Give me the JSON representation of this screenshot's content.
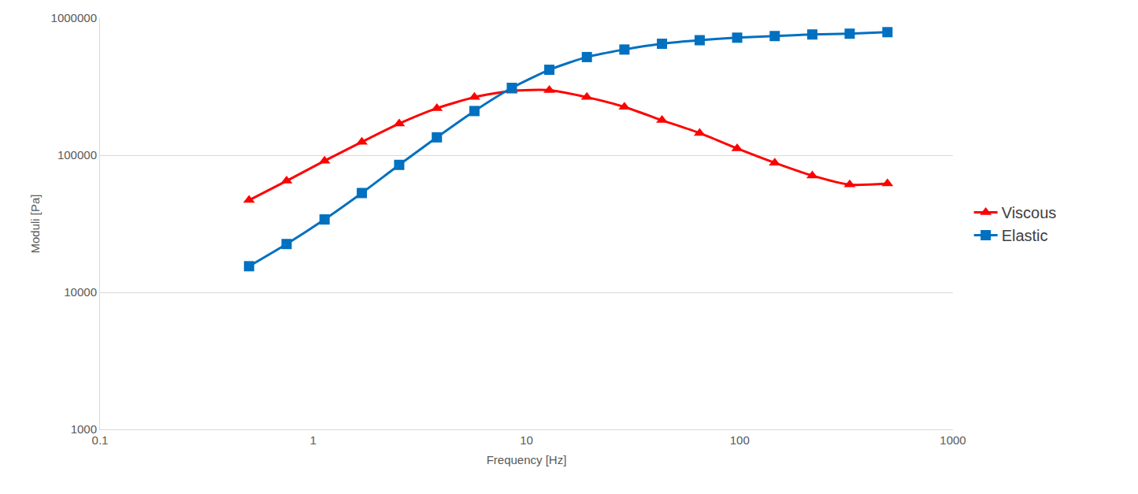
{
  "chart_data": {
    "type": "line",
    "x_label": "Frequency [Hz]",
    "y_label": "Moduli [Pa]",
    "x": [
      0.5,
      0.75,
      1.13,
      1.69,
      2.53,
      3.8,
      5.7,
      8.54,
      12.8,
      19.2,
      28.8,
      43.2,
      64.9,
      97.3,
      146,
      219,
      328,
      493
    ],
    "series": [
      {
        "name": "Viscous",
        "color": "#ff0000",
        "marker": "triangle-up",
        "values": [
          47000,
          65000,
          91000,
          125000,
          170000,
          220000,
          265000,
          295000,
          298000,
          265000,
          225000,
          180000,
          145000,
          112000,
          88000,
          71000,
          61000,
          62000
        ]
      },
      {
        "name": "Elastic",
        "color": "#0070c0",
        "marker": "square",
        "values": [
          15500,
          22500,
          34000,
          53000,
          85000,
          135000,
          210000,
          310000,
          420000,
          520000,
          590000,
          650000,
          690000,
          720000,
          740000,
          760000,
          770000,
          790000
        ]
      }
    ],
    "log": true,
    "xlim": [
      0.1,
      1000
    ],
    "xticks": [
      0.1,
      1,
      10,
      100,
      1000
    ],
    "ylim": [
      1000,
      1000000
    ],
    "yticks": [
      1000,
      10000,
      100000,
      1000000
    ],
    "grid": true,
    "legend": "right"
  }
}
